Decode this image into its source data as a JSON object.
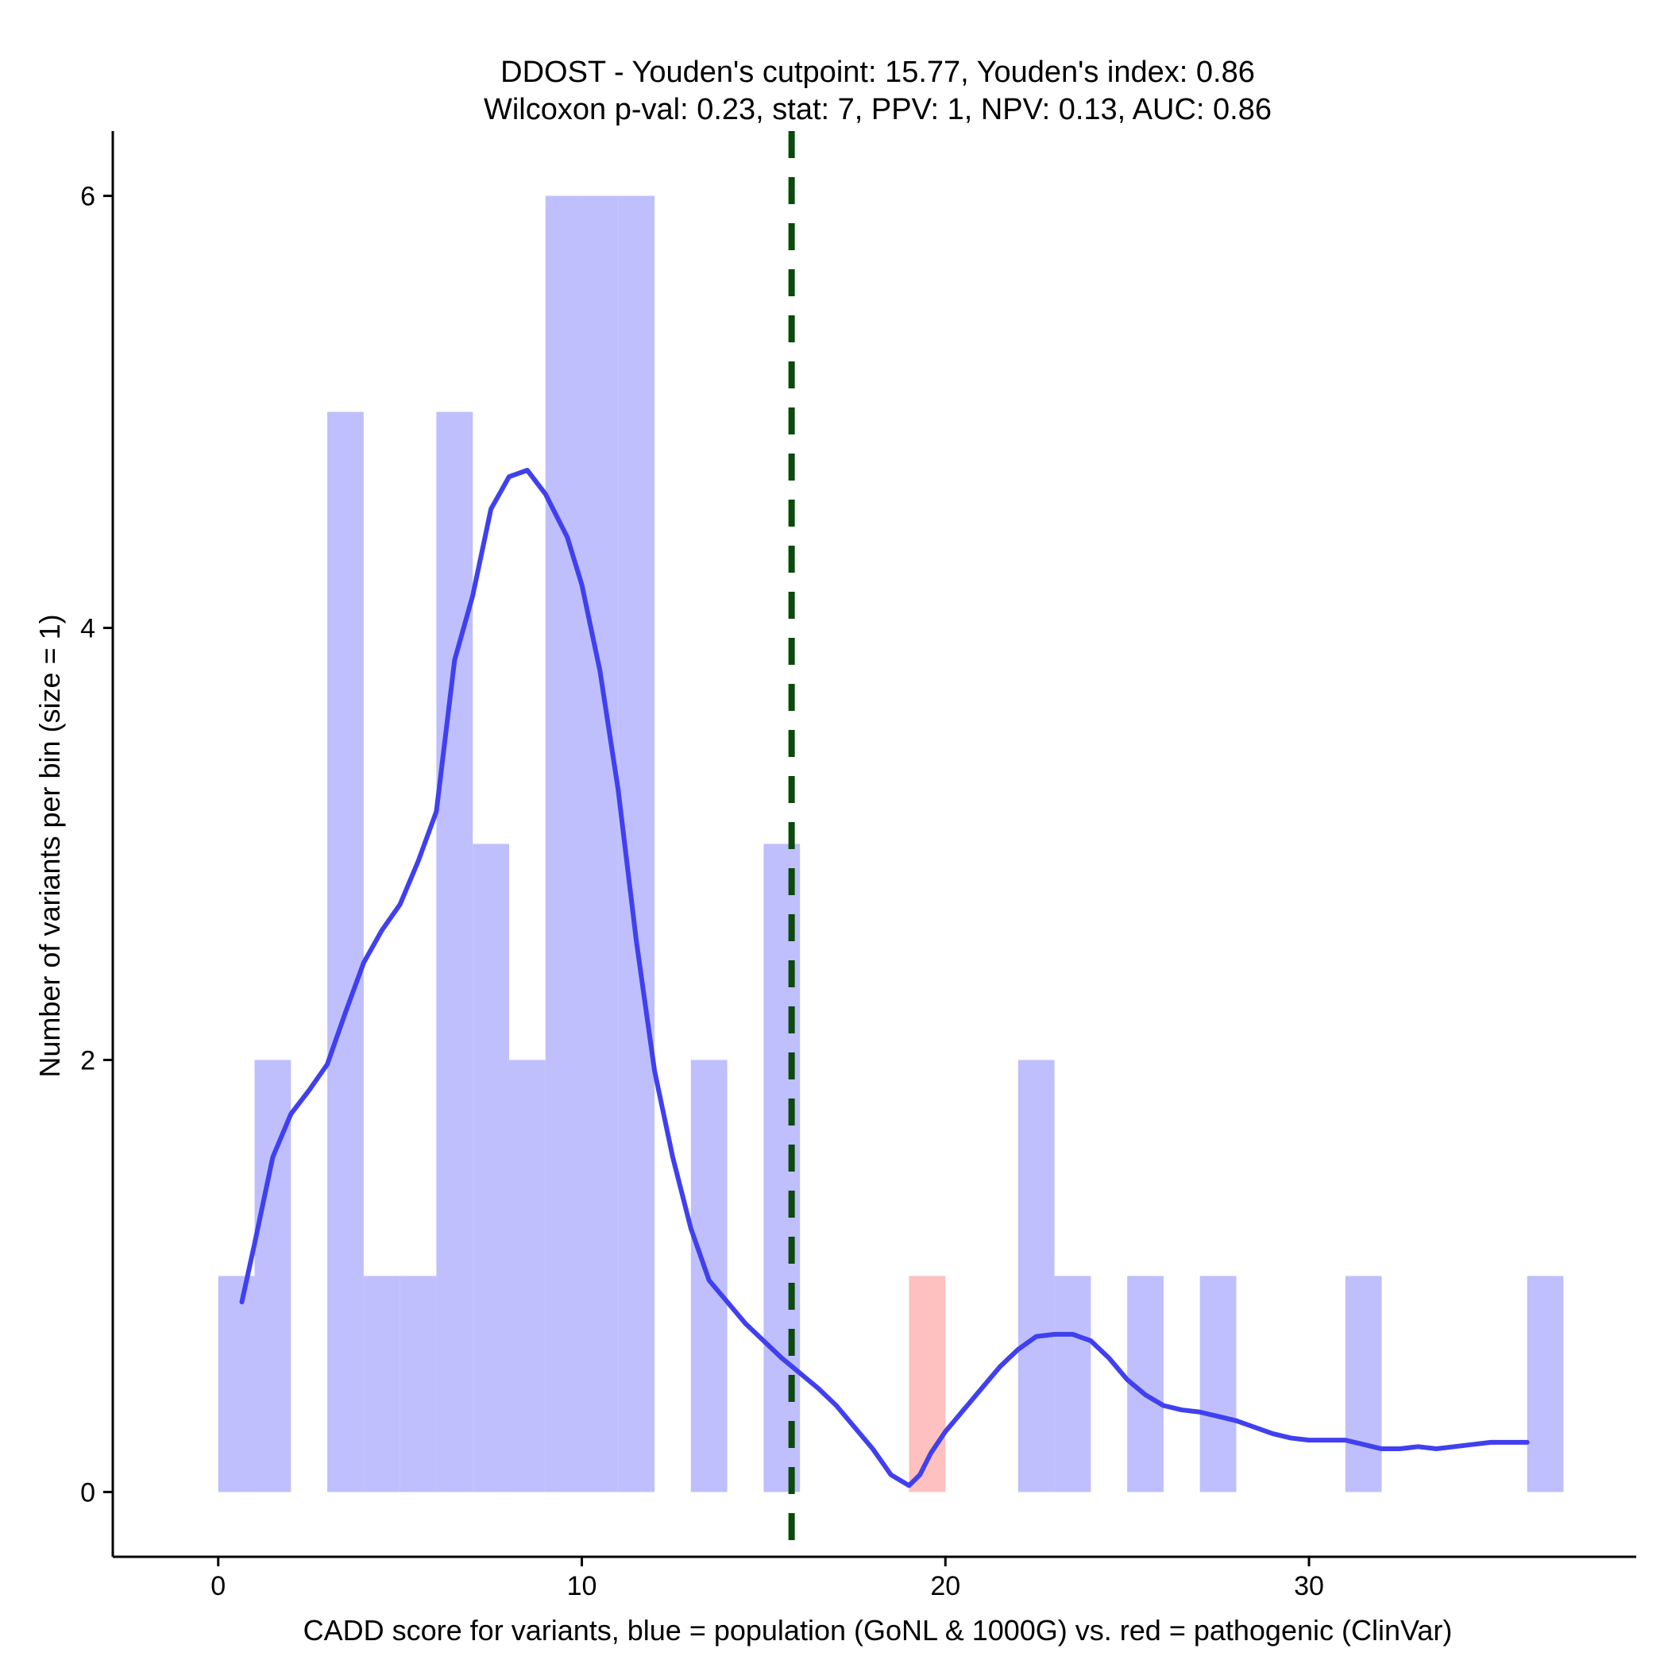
{
  "chart_data": {
    "type": "bar",
    "title": "DDOST - Youden's cutpoint: 15.77, Youden's index: 0.86",
    "subtitle": "Wilcoxon p-val: 0.23, stat: 7, PPV: 1, NPV: 0.13, AUC: 0.86",
    "xlabel": "CADD score for variants, blue = population (GoNL & 1000G) vs. red = pathogenic (ClinVar)",
    "ylabel": "Number of variants per bin (size = 1)",
    "xlim": [
      -2.9,
      39
    ],
    "ylim": [
      -0.3,
      6.3
    ],
    "x_ticks": [
      0,
      10,
      20,
      30
    ],
    "y_ticks": [
      0,
      2,
      4,
      6
    ],
    "bin_width": 1,
    "colors": {
      "population": "#bfbffd",
      "pathogenic": "#ffc0c0",
      "density": "#4040f0",
      "cutpoint": "#0a4a0a"
    },
    "series": [
      {
        "name": "population",
        "bins": [
          [
            0,
            1
          ],
          [
            1,
            2
          ],
          [
            3,
            5
          ],
          [
            4,
            1
          ],
          [
            5,
            1
          ],
          [
            6,
            5
          ],
          [
            7,
            3
          ],
          [
            8,
            2
          ],
          [
            9,
            6
          ],
          [
            10,
            6
          ],
          [
            11,
            6
          ],
          [
            13,
            2
          ],
          [
            15,
            3
          ],
          [
            22,
            2
          ],
          [
            23,
            1
          ],
          [
            25,
            1
          ],
          [
            27,
            1
          ],
          [
            31,
            1
          ],
          [
            36,
            1
          ]
        ]
      },
      {
        "name": "pathogenic",
        "bins": [
          [
            19,
            1
          ]
        ]
      }
    ],
    "density_curve": {
      "x": [
        0.65,
        1.0,
        1.5,
        2.0,
        2.5,
        3.0,
        3.5,
        4.0,
        4.5,
        5.0,
        5.5,
        6.0,
        6.5,
        7.0,
        7.5,
        8.0,
        8.5,
        9.0,
        9.3,
        9.6,
        10.0,
        10.5,
        11.0,
        11.5,
        12.0,
        12.5,
        13.0,
        13.5,
        14.0,
        14.5,
        15.0,
        15.5,
        16.0,
        16.5,
        17.0,
        17.5,
        18.0,
        18.5,
        19.0,
        19.3,
        19.6,
        20.0,
        20.5,
        21.0,
        21.5,
        22.0,
        22.5,
        23.0,
        23.5,
        24.0,
        24.5,
        25.0,
        25.5,
        26.0,
        26.5,
        27.0,
        27.5,
        28.0,
        28.5,
        29.0,
        29.5,
        30.0,
        30.5,
        31.0,
        31.5,
        32.0,
        32.5,
        33.0,
        33.5,
        34.0,
        34.5,
        35.0,
        35.5,
        36.0
      ],
      "y": [
        0.88,
        1.15,
        1.55,
        1.75,
        1.86,
        1.98,
        2.22,
        2.45,
        2.6,
        2.72,
        2.92,
        3.15,
        3.85,
        4.15,
        4.55,
        4.7,
        4.73,
        4.62,
        4.52,
        4.42,
        4.2,
        3.8,
        3.25,
        2.55,
        1.95,
        1.55,
        1.22,
        0.98,
        0.88,
        0.78,
        0.7,
        0.62,
        0.55,
        0.48,
        0.4,
        0.3,
        0.2,
        0.08,
        0.03,
        0.08,
        0.18,
        0.28,
        0.38,
        0.48,
        0.58,
        0.66,
        0.72,
        0.73,
        0.73,
        0.7,
        0.62,
        0.52,
        0.45,
        0.4,
        0.38,
        0.37,
        0.35,
        0.33,
        0.3,
        0.27,
        0.25,
        0.24,
        0.24,
        0.24,
        0.22,
        0.2,
        0.2,
        0.21,
        0.2,
        0.21,
        0.22,
        0.23,
        0.23,
        0.23
      ]
    },
    "cutpoint": 15.77,
    "grid": false,
    "legend": "none"
  }
}
